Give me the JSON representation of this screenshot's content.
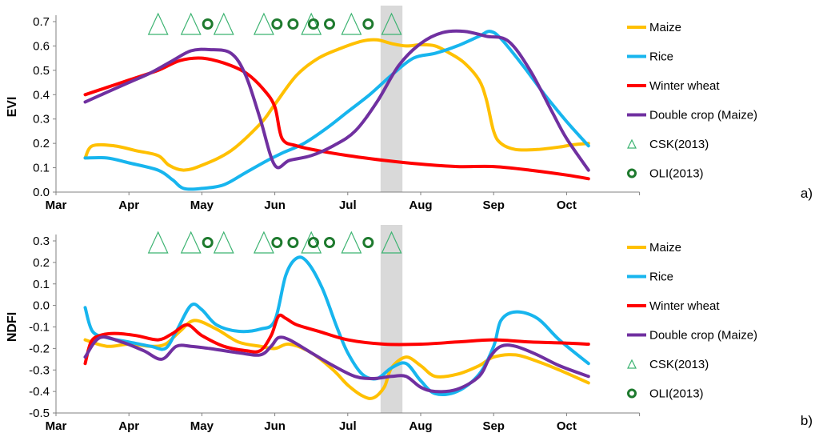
{
  "colors": {
    "maize": "#FFC000",
    "rice": "#17B5EE",
    "winter_wheat": "#FF0000",
    "double_crop": "#7030A0",
    "csk": "#3CB371",
    "oli": "#1E7A2E",
    "highlight": "#D9D9D9",
    "axis": "#808080"
  },
  "chart_data": [
    {
      "type": "line",
      "panel_label": "a)",
      "ylabel": "EVI",
      "ylim": [
        0.0,
        0.7
      ],
      "yticks": [
        "0.0",
        "0.1",
        "0.2",
        "0.3",
        "0.4",
        "0.5",
        "0.6",
        "0.7"
      ],
      "xticks": [
        "Mar",
        "Apr",
        "May",
        "Jun",
        "Jul",
        "Aug",
        "Sep",
        "Oct"
      ],
      "x_unit": "month index (0 = Mar)",
      "highlight_span": [
        4.45,
        4.75
      ],
      "series": [
        {
          "name": "Maize",
          "color_key": "maize",
          "x": [
            0.4,
            0.5,
            0.8,
            1.1,
            1.4,
            1.55,
            1.75,
            2.0,
            2.4,
            2.8,
            3.0,
            3.3,
            3.6,
            3.9,
            4.2,
            4.4,
            4.6,
            4.8,
            5.0,
            5.2,
            5.4,
            5.6,
            5.8,
            5.9,
            6.0,
            6.1,
            6.3,
            6.6,
            6.9,
            7.1,
            7.3
          ],
          "y": [
            0.14,
            0.19,
            0.19,
            0.17,
            0.15,
            0.11,
            0.09,
            0.11,
            0.17,
            0.28,
            0.36,
            0.48,
            0.55,
            0.59,
            0.62,
            0.625,
            0.61,
            0.6,
            0.605,
            0.6,
            0.57,
            0.53,
            0.46,
            0.38,
            0.25,
            0.2,
            0.175,
            0.175,
            0.185,
            0.195,
            0.2
          ]
        },
        {
          "name": "Rice",
          "color_key": "rice",
          "x": [
            0.4,
            0.7,
            1.0,
            1.4,
            1.6,
            1.75,
            2.0,
            2.3,
            2.6,
            2.9,
            3.1,
            3.4,
            3.7,
            4.0,
            4.3,
            4.6,
            4.9,
            5.2,
            5.5,
            5.8,
            5.95,
            6.1,
            6.4,
            6.7,
            7.0,
            7.3
          ],
          "y": [
            0.14,
            0.14,
            0.12,
            0.09,
            0.05,
            0.015,
            0.015,
            0.03,
            0.08,
            0.13,
            0.16,
            0.2,
            0.26,
            0.33,
            0.4,
            0.48,
            0.55,
            0.57,
            0.6,
            0.64,
            0.66,
            0.63,
            0.52,
            0.4,
            0.29,
            0.19
          ]
        },
        {
          "name": "Winter wheat",
          "color_key": "winter_wheat",
          "x": [
            0.4,
            0.7,
            1.0,
            1.4,
            1.7,
            2.0,
            2.3,
            2.6,
            2.85,
            3.0,
            3.1,
            3.3,
            3.6,
            4.0,
            4.5,
            5.0,
            5.5,
            6.0,
            6.5,
            7.0,
            7.3
          ],
          "y": [
            0.4,
            0.43,
            0.46,
            0.5,
            0.54,
            0.55,
            0.53,
            0.49,
            0.42,
            0.35,
            0.22,
            0.19,
            0.17,
            0.15,
            0.13,
            0.115,
            0.105,
            0.105,
            0.09,
            0.07,
            0.055
          ]
        },
        {
          "name": "Double crop (Maize)",
          "color_key": "double_crop",
          "x": [
            0.4,
            0.7,
            1.0,
            1.3,
            1.6,
            1.85,
            2.1,
            2.4,
            2.6,
            2.8,
            3.0,
            3.2,
            3.5,
            3.8,
            4.1,
            4.4,
            4.7,
            5.0,
            5.3,
            5.6,
            5.9,
            6.2,
            6.5,
            6.8,
            7.0,
            7.3
          ],
          "y": [
            0.37,
            0.41,
            0.45,
            0.49,
            0.54,
            0.58,
            0.585,
            0.57,
            0.48,
            0.3,
            0.11,
            0.13,
            0.15,
            0.19,
            0.25,
            0.37,
            0.52,
            0.61,
            0.655,
            0.66,
            0.64,
            0.62,
            0.5,
            0.33,
            0.22,
            0.09
          ]
        }
      ],
      "markers": [
        {
          "name": "CSK(2013)",
          "shape": "triangle",
          "x": [
            1.4,
            1.85,
            2.3,
            2.85,
            3.5,
            4.05,
            4.6
          ]
        },
        {
          "name": "OLI(2013)",
          "shape": "circle",
          "x": [
            2.08,
            3.03,
            3.25,
            3.53,
            3.75,
            4.28
          ]
        }
      ]
    },
    {
      "type": "line",
      "panel_label": "b)",
      "ylabel": "NDFI",
      "ylim": [
        -0.5,
        0.3
      ],
      "yticks": [
        "-0.5",
        "-0.4",
        "-0.3",
        "-0.2",
        "-0.1",
        "0.0",
        "0.1",
        "0.2",
        "0.3"
      ],
      "xticks": [
        "Mar",
        "Apr",
        "May",
        "Jun",
        "Jul",
        "Aug",
        "Sep",
        "Oct"
      ],
      "x_unit": "month index (0 = Mar)",
      "highlight_span": [
        4.45,
        4.75
      ],
      "series": [
        {
          "name": "Maize",
          "color_key": "maize",
          "x": [
            0.4,
            0.7,
            1.0,
            1.3,
            1.5,
            1.7,
            1.9,
            2.2,
            2.5,
            2.8,
            3.0,
            3.2,
            3.5,
            3.8,
            4.0,
            4.2,
            4.35,
            4.5,
            4.6,
            4.8,
            5.0,
            5.2,
            5.5,
            5.8,
            6.0,
            6.3,
            6.6,
            6.9,
            7.3
          ],
          "y": [
            -0.16,
            -0.19,
            -0.18,
            -0.19,
            -0.18,
            -0.12,
            -0.07,
            -0.11,
            -0.17,
            -0.19,
            -0.2,
            -0.18,
            -0.22,
            -0.3,
            -0.37,
            -0.42,
            -0.43,
            -0.38,
            -0.29,
            -0.24,
            -0.28,
            -0.33,
            -0.32,
            -0.28,
            -0.24,
            -0.23,
            -0.26,
            -0.3,
            -0.36
          ]
        },
        {
          "name": "Rice",
          "color_key": "rice",
          "x": [
            0.4,
            0.5,
            0.7,
            1.0,
            1.3,
            1.5,
            1.65,
            1.85,
            2.0,
            2.2,
            2.5,
            2.8,
            3.0,
            3.15,
            3.3,
            3.45,
            3.65,
            3.85,
            4.0,
            4.2,
            4.4,
            4.6,
            4.8,
            5.0,
            5.2,
            5.5,
            5.8,
            6.0,
            6.1,
            6.3,
            6.6,
            6.9,
            7.3
          ],
          "y": [
            -0.01,
            -0.12,
            -0.15,
            -0.17,
            -0.19,
            -0.2,
            -0.12,
            0.0,
            -0.02,
            -0.09,
            -0.12,
            -0.11,
            -0.07,
            0.14,
            0.22,
            0.2,
            0.08,
            -0.1,
            -0.22,
            -0.32,
            -0.34,
            -0.29,
            -0.27,
            -0.35,
            -0.41,
            -0.4,
            -0.32,
            -0.19,
            -0.07,
            -0.03,
            -0.06,
            -0.16,
            -0.27
          ]
        },
        {
          "name": "Winter wheat",
          "color_key": "winter_wheat",
          "x": [
            0.4,
            0.48,
            0.6,
            0.8,
            1.1,
            1.4,
            1.6,
            1.8,
            2.0,
            2.3,
            2.6,
            2.8,
            2.95,
            3.05,
            3.15,
            3.3,
            3.6,
            4.0,
            4.5,
            5.0,
            5.5,
            6.0,
            6.5,
            7.0,
            7.3
          ],
          "y": [
            -0.27,
            -0.17,
            -0.14,
            -0.13,
            -0.14,
            -0.16,
            -0.13,
            -0.09,
            -0.14,
            -0.19,
            -0.21,
            -0.21,
            -0.14,
            -0.05,
            -0.06,
            -0.09,
            -0.12,
            -0.16,
            -0.18,
            -0.18,
            -0.17,
            -0.16,
            -0.17,
            -0.175,
            -0.18
          ]
        },
        {
          "name": "Double crop (Maize)",
          "color_key": "double_crop",
          "x": [
            0.4,
            0.6,
            0.9,
            1.2,
            1.45,
            1.65,
            1.85,
            2.1,
            2.5,
            2.8,
            2.95,
            3.05,
            3.2,
            3.5,
            3.8,
            4.1,
            4.35,
            4.6,
            4.8,
            5.0,
            5.2,
            5.5,
            5.8,
            5.95,
            6.1,
            6.3,
            6.6,
            6.9,
            7.3
          ],
          "y": [
            -0.24,
            -0.15,
            -0.17,
            -0.21,
            -0.25,
            -0.19,
            -0.19,
            -0.2,
            -0.22,
            -0.23,
            -0.19,
            -0.15,
            -0.16,
            -0.22,
            -0.28,
            -0.33,
            -0.34,
            -0.33,
            -0.33,
            -0.38,
            -0.4,
            -0.39,
            -0.33,
            -0.24,
            -0.19,
            -0.19,
            -0.23,
            -0.28,
            -0.33
          ]
        }
      ],
      "markers": [
        {
          "name": "CSK(2013)",
          "shape": "triangle",
          "x": [
            1.4,
            1.85,
            2.3,
            2.85,
            3.5,
            4.05,
            4.6
          ]
        },
        {
          "name": "OLI(2013)",
          "shape": "circle",
          "x": [
            2.08,
            3.03,
            3.25,
            3.53,
            3.75,
            4.28
          ]
        }
      ]
    }
  ]
}
